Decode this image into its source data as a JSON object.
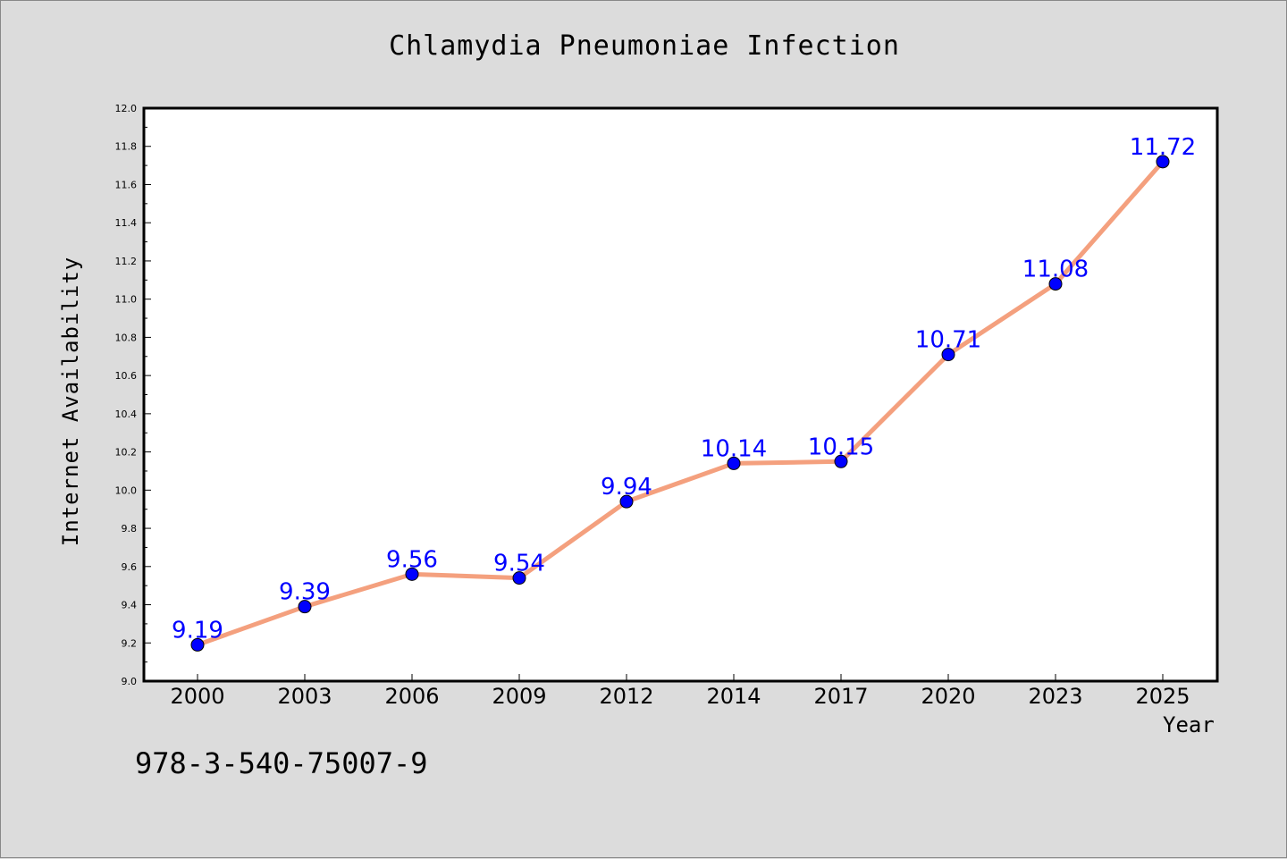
{
  "figure": {
    "footnote": "978-3-540-75007-9"
  },
  "colors": {
    "background": "#dcdcdc",
    "plot_area": "#ffffff",
    "line": "#f4a07e",
    "marker": "#0000ff",
    "data_label": "#0000ff"
  },
  "chart_data": {
    "type": "line",
    "title": "Chlamydia Pneumoniae Infection",
    "xlabel": "Year",
    "ylabel": "Internet Availability",
    "categories": [
      "2000",
      "2003",
      "2006",
      "2009",
      "2012",
      "2014",
      "2017",
      "2020",
      "2023",
      "2025"
    ],
    "series": [
      {
        "values": [
          9.19,
          9.39,
          9.56,
          9.54,
          9.94,
          10.14,
          10.15,
          10.71,
          11.08,
          11.72
        ],
        "data_labels": [
          "9.19",
          "9.39",
          "9.56",
          "9.54",
          "9.94",
          "10.14",
          "10.15",
          "10.71",
          "11.08",
          "11.72"
        ]
      }
    ],
    "ylim": [
      9.0,
      12.0
    ],
    "y_ticks": [
      "9.0",
      "9.2",
      "9.4",
      "9.6",
      "9.8",
      "10.0",
      "10.2",
      "10.4",
      "10.6",
      "10.8",
      "11.0",
      "11.2",
      "11.4",
      "11.6",
      "11.8",
      "12.0"
    ],
    "grid": false,
    "legend": "none",
    "markers": "circle"
  }
}
